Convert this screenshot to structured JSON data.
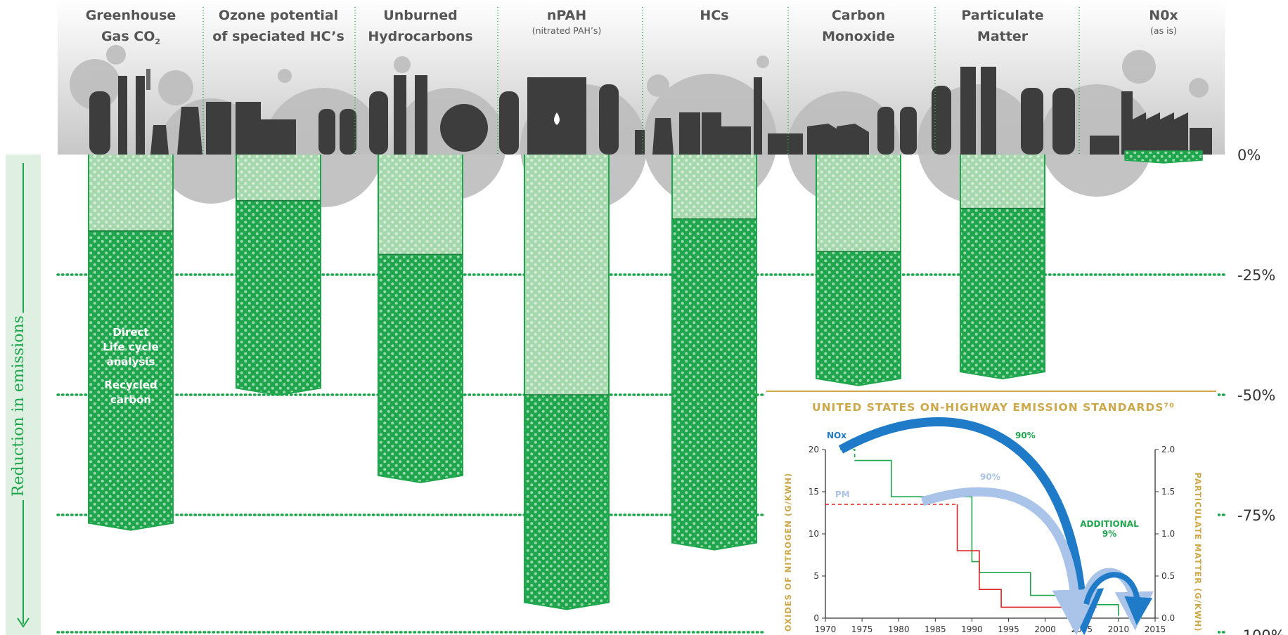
{
  "categories": [
    {
      "label1": "Greenhouse",
      "label2": "Gas CO",
      "sub": "2",
      "lca": 15.9,
      "direct": 76.7,
      "note": null
    },
    {
      "label1": "Ozone potential",
      "label2": "of speciated HC’s",
      "lca": 9.6,
      "direct": 48.6,
      "note": null
    },
    {
      "label1": "Unburned",
      "label2": "Hydrocarbons",
      "lca": 20.8,
      "direct": 66.8,
      "note": null
    },
    {
      "label1": "nPAH",
      "label2": "",
      "note": "(nitrated PAH’s)",
      "lca": 50.0,
      "direct": 93.2
    },
    {
      "label1": "HCs",
      "label2": "",
      "lca": 13.4,
      "direct": 80.8,
      "note": null
    },
    {
      "label1": "Carbon",
      "label2": "Monoxide",
      "lca": 20.2,
      "direct": 46.6,
      "note": null
    },
    {
      "label1": "Particulate",
      "label2": "Matter",
      "lca": 11.2,
      "direct": 45.2,
      "note": null
    },
    {
      "label1": "N0x",
      "label2": "",
      "note": "(as is)",
      "lca": -1.0,
      "direct": -1.0
    }
  ],
  "bar_legend": {
    "line1": "Direct",
    "line2": "Life cycle",
    "line3": "analysis",
    "line4": "Recycled",
    "line5": "carbon"
  },
  "y_axis": {
    "title": "Reduction in emissions",
    "ticks": [
      "0%",
      "-25%",
      "-50%",
      "-75%",
      "-100%"
    ],
    "tick_values": [
      0,
      -25,
      -50,
      -75,
      -100
    ]
  },
  "colors": {
    "dark_green": "#1fa64d",
    "light_green": "#a6d8ae",
    "dots": "#ffffff",
    "gridline": "#1fa64d",
    "factory": "#3d3d3d",
    "smoke": "#a8a8a8",
    "inset_gold": "#cda84a",
    "nox_blue": "#1f7bc8",
    "pm_blue": "#a9c4e8",
    "nox_line": "#1fa64d",
    "pm_line": "#dd2020"
  },
  "chart_data": [
    {
      "type": "bar",
      "title": "",
      "categories": [
        "Greenhouse Gas CO2",
        "Ozone potential of speciated HC’s",
        "Unburned Hydrocarbons",
        "nPAH (nitrated PAH’s)",
        "HCs",
        "Carbon Monoxide",
        "Particulate Matter",
        "N0x (as is)"
      ],
      "series": [
        {
          "name": "Life cycle analysis",
          "values": [
            -15.9,
            -9.6,
            -20.8,
            -50.0,
            -13.4,
            -20.2,
            -11.2,
            1.0
          ]
        },
        {
          "name": "Direct",
          "values": [
            -76.7,
            -48.6,
            -66.8,
            -93.2,
            -80.8,
            -46.6,
            -45.2,
            1.0
          ]
        }
      ],
      "ylabel": "Reduction in emissions",
      "ylim": [
        -100,
        0
      ]
    },
    {
      "type": "line",
      "title": "UNITED STATES ON-HIGHWAY EMISSION STANDARDS⁷⁰",
      "xlabel": "",
      "ylabel": "OXIDES OF NITROGEN (G/KWH)",
      "y2label": "PARTICULATE MATTER (G/KWH)",
      "xlim": [
        1970,
        2015
      ],
      "ylim": [
        0,
        20
      ],
      "y2lim": [
        0,
        2.0
      ],
      "x_ticks": [
        1970,
        1975,
        1980,
        1985,
        1990,
        1995,
        2000,
        2005,
        2010,
        2015
      ],
      "y_ticks": [
        0,
        5,
        10,
        15,
        20
      ],
      "y2_ticks": [
        "0.0",
        "0.5",
        "1.0",
        "1.5",
        "2.0"
      ],
      "series": [
        {
          "name": "NOx",
          "axis": "left",
          "step": true,
          "x": [
            1974,
            1979,
            1979,
            1990,
            1990,
            1991,
            1991,
            1998,
            1998,
            2004,
            2004,
            2007,
            2007,
            2010,
            2010
          ],
          "y": [
            18.7,
            18.7,
            14.4,
            14.4,
            6.7,
            6.7,
            5.4,
            5.4,
            2.7,
            2.7,
            2.5,
            2.5,
            1.6,
            1.6,
            0.27
          ],
          "dashed_x": [
            1972,
            1974,
            1974
          ],
          "dashed_y": [
            20,
            20,
            18.7
          ]
        },
        {
          "name": "PM",
          "axis": "right",
          "step": true,
          "x": [
            1988,
            1988,
            1991,
            1991,
            1994,
            1994,
            2007
          ],
          "y": [
            1.35,
            0.8,
            0.8,
            0.34,
            0.34,
            0.13,
            0.13
          ],
          "dashed_x": [
            1970,
            1988
          ],
          "dashed_y": [
            1.35,
            1.35
          ]
        }
      ],
      "annotations": [
        {
          "text": "NOx"
        },
        {
          "text": "90%"
        },
        {
          "text": "PM"
        },
        {
          "text": "90%"
        },
        {
          "text": "ADDITIONAL"
        },
        {
          "text": "9%"
        }
      ]
    }
  ]
}
